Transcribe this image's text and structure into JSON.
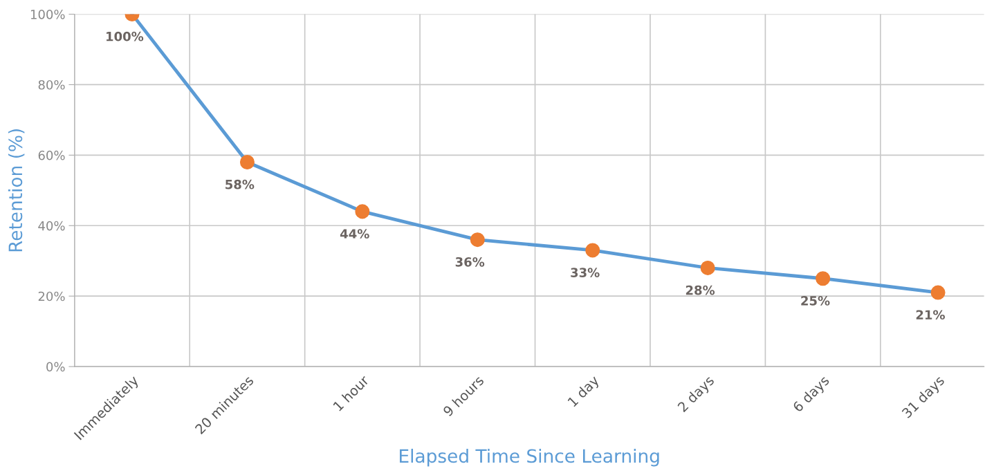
{
  "chart_data": {
    "type": "line",
    "xlabel": "Elapsed Time Since Learning",
    "ylabel": "Retention (%)",
    "categories": [
      "Immediately",
      "20 minutes",
      "1 hour",
      "9 hours",
      "1 day",
      "2 days",
      "6 days",
      "31 days"
    ],
    "series": [
      {
        "color": "#5b9bd5",
        "colors": [
          "#ed7d31",
          "#ed7d31",
          "#ed7d31",
          "#ed7d31",
          "#ed7d31",
          "#ed7d31",
          "#ed7d31",
          "#ed7d31"
        ],
        "values": [
          100,
          58,
          44,
          36,
          33,
          28,
          25,
          21
        ]
      }
    ],
    "marker": "circle",
    "line_style": "solid",
    "ylim": [
      0,
      100
    ],
    "yticks": [
      {
        "value": 0,
        "label": "0%"
      },
      {
        "value": 20,
        "label": "20%"
      },
      {
        "value": 40,
        "label": "40%"
      },
      {
        "value": 60,
        "label": "60%"
      },
      {
        "value": 80,
        "label": "80%"
      },
      {
        "value": 100,
        "label": "100%"
      }
    ],
    "value_labels": [
      "100%",
      "58%",
      "44%",
      "36%",
      "33%",
      "28%",
      "25%",
      "21%"
    ],
    "grid": true,
    "legend": false
  }
}
